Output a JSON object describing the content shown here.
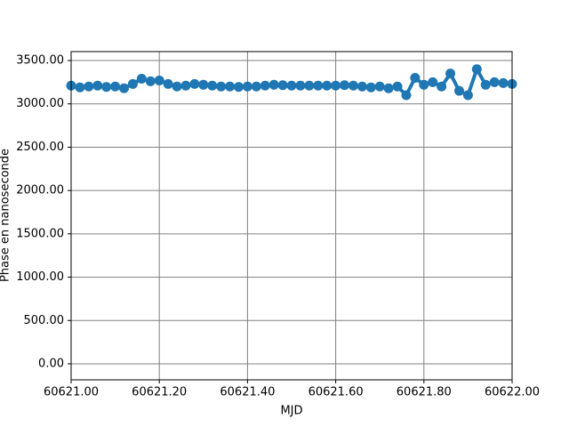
{
  "chart_data": {
    "type": "line",
    "x_label": "MJD",
    "y_label": "Phase en nanoseconde",
    "x": [
      60621.0,
      60621.02,
      60621.04,
      60621.06,
      60621.08,
      60621.1,
      60621.12,
      60621.14,
      60621.16,
      60621.18,
      60621.2,
      60621.22,
      60621.24,
      60621.26,
      60621.28,
      60621.3,
      60621.32,
      60621.34,
      60621.36,
      60621.38,
      60621.4,
      60621.42,
      60621.44,
      60621.46,
      60621.48,
      60621.5,
      60621.52,
      60621.54,
      60621.56,
      60621.58,
      60621.6,
      60621.62,
      60621.64,
      60621.66,
      60621.68,
      60621.7,
      60621.72,
      60621.74,
      60621.76,
      60621.78,
      60621.8,
      60621.82,
      60621.84,
      60621.86,
      60621.88,
      60621.9,
      60621.92,
      60621.94,
      60621.96,
      60621.98,
      60622.0
    ],
    "series": [
      {
        "name": "Phase",
        "color": "#1f77b4",
        "values": [
          3210,
          3190,
          3200,
          3210,
          3195,
          3200,
          3180,
          3230,
          3290,
          3260,
          3270,
          3230,
          3200,
          3210,
          3230,
          3220,
          3210,
          3200,
          3200,
          3195,
          3200,
          3200,
          3210,
          3220,
          3215,
          3210,
          3210,
          3210,
          3210,
          3210,
          3210,
          3215,
          3210,
          3200,
          3190,
          3200,
          3180,
          3200,
          3100,
          3300,
          3220,
          3250,
          3200,
          3350,
          3150,
          3100,
          3400,
          3220,
          3250,
          3240,
          3230
        ]
      }
    ],
    "xlim": [
      60621.0,
      60622.0
    ],
    "xticks": [
      {
        "value": 60621.0,
        "label": "60621.00"
      },
      {
        "value": 60621.2,
        "label": "60621.20"
      },
      {
        "value": 60621.4,
        "label": "60621.40"
      },
      {
        "value": 60621.6,
        "label": "60621.60"
      },
      {
        "value": 60621.8,
        "label": "60621.80"
      },
      {
        "value": 60622.0,
        "label": "60622.00"
      }
    ],
    "ylim": [
      -185,
      3603
    ],
    "yticks": [
      {
        "value": 0,
        "label": "0.00"
      },
      {
        "value": 500,
        "label": "500.00"
      },
      {
        "value": 1000,
        "label": "1000.00"
      },
      {
        "value": 1500,
        "label": "1500.00"
      },
      {
        "value": 2000,
        "label": "2000.00"
      },
      {
        "value": 2500,
        "label": "2500.00"
      },
      {
        "value": 3000,
        "label": "3000.00"
      },
      {
        "value": 3500,
        "label": "3500.00"
      }
    ],
    "grid": true
  }
}
